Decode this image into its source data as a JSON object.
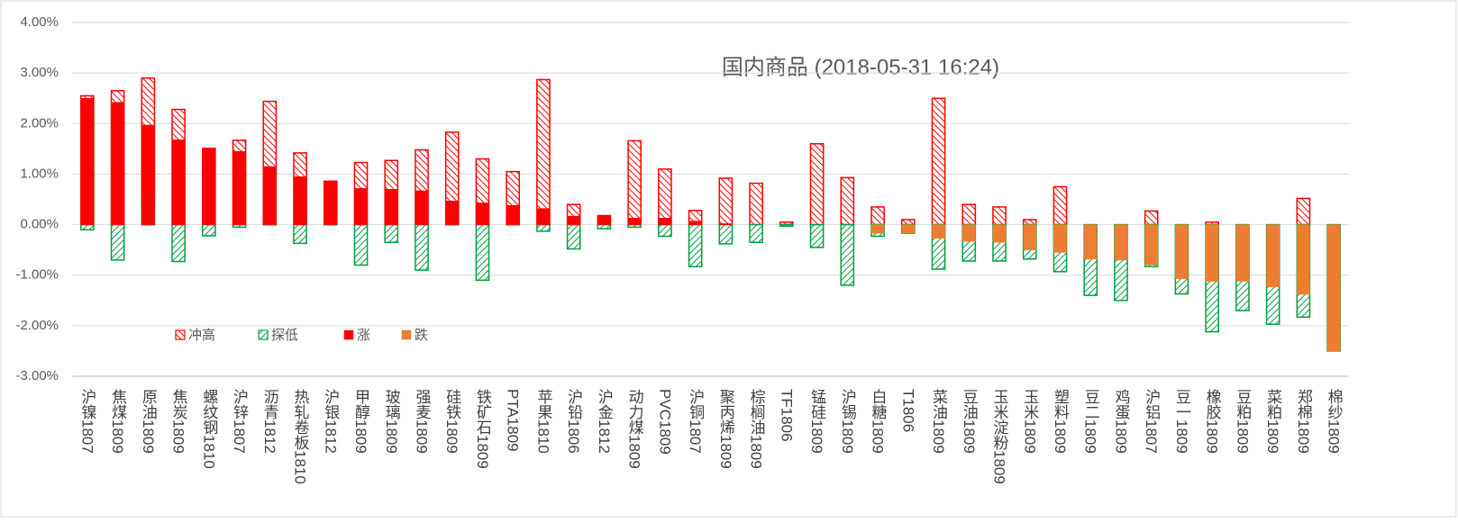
{
  "chart_data": {
    "type": "range_bar",
    "title": "国内商品 (2018-05-31 16:24)",
    "categories": [
      "沪镍1807",
      "焦煤1809",
      "原油1809",
      "焦炭1809",
      "螺纹钢1810",
      "沪锌1807",
      "沥青1812",
      "热轧卷板1810",
      "沪银1812",
      "甲醇1809",
      "玻璃1809",
      "强麦1809",
      "硅铁1809",
      "铁矿石1809",
      "PTA1809",
      "苹果1810",
      "沪铅1806",
      "沪金1812",
      "动力煤1809",
      "PVC1809",
      "沪铜1807",
      "聚丙烯1809",
      "棕榈油1809",
      "TF1806",
      "锰硅1809",
      "沪锡1809",
      "白糖1809",
      "T1806",
      "菜油1809",
      "豆油1809",
      "玉米淀粉1809",
      "玉米1809",
      "塑料1809",
      "豆二1809",
      "鸡蛋1809",
      "沪铝1807",
      "豆一1809",
      "橡胶1809",
      "豆粕1809",
      "菜粕1809",
      "郑棉1809",
      "棉纱1809"
    ],
    "series": [
      {
        "name": "冲高",
        "color": "#ff0000",
        "style": "hatched",
        "values": [
          2.55,
          2.65,
          2.9,
          2.28,
          1.5,
          1.67,
          2.44,
          1.42,
          0.86,
          1.23,
          1.27,
          1.48,
          1.83,
          1.3,
          1.05,
          2.87,
          0.4,
          0.18,
          1.66,
          1.1,
          0.28,
          0.92,
          0.82,
          0.05,
          1.6,
          0.93,
          0.35,
          0.1,
          2.5,
          0.4,
          0.35,
          0.1,
          0.75,
          null,
          null,
          0.27,
          null,
          0.05,
          null,
          null,
          0.52,
          null
        ]
      },
      {
        "name": "探低",
        "color": "#00a040",
        "style": "hatched",
        "values": [
          -0.1,
          -0.7,
          0.42,
          -0.73,
          -0.22,
          -0.05,
          0.02,
          -0.37,
          0.02,
          -0.8,
          -0.35,
          -0.9,
          0.02,
          -1.1,
          0.02,
          -0.13,
          -0.48,
          -0.08,
          -0.05,
          -0.23,
          -0.83,
          -0.38,
          -0.35,
          -0.03,
          -0.45,
          -1.2,
          -0.23,
          -0.17,
          -0.88,
          -0.72,
          -0.72,
          -0.68,
          -0.93,
          -1.4,
          -1.5,
          -0.83,
          -1.37,
          -2.12,
          -1.7,
          -1.97,
          -1.83,
          -2.5
        ]
      },
      {
        "name": "涨",
        "color": "#ff0000",
        "style": "solid",
        "values": [
          2.5,
          2.42,
          1.97,
          1.68,
          1.52,
          1.45,
          1.15,
          0.95,
          0.86,
          0.72,
          0.7,
          0.67,
          0.47,
          0.43,
          0.38,
          0.32,
          0.17,
          0.18,
          0.13,
          0.13,
          0.07,
          0.02,
          null,
          null,
          null,
          null,
          null,
          null,
          null,
          null,
          null,
          null,
          null,
          null,
          null,
          null,
          null,
          null,
          null,
          null,
          null,
          null
        ]
      },
      {
        "name": "跌",
        "color": "#ed7d31",
        "style": "solid",
        "values": [
          null,
          null,
          null,
          null,
          null,
          null,
          null,
          null,
          null,
          null,
          null,
          null,
          null,
          null,
          null,
          null,
          null,
          null,
          null,
          null,
          null,
          null,
          null,
          null,
          null,
          null,
          -0.17,
          -0.17,
          -0.27,
          -0.33,
          -0.35,
          -0.5,
          -0.55,
          -0.68,
          -0.7,
          -0.8,
          -1.07,
          -1.12,
          -1.12,
          -1.23,
          -1.38,
          -2.5
        ]
      }
    ],
    "ylim": [
      -3,
      4
    ],
    "yticks": [
      {
        "value": -3,
        "label": "-3.00%"
      },
      {
        "value": -2,
        "label": "-2.00%"
      },
      {
        "value": -1,
        "label": "-1.00%"
      },
      {
        "value": 0,
        "label": "0.00%"
      },
      {
        "value": 1,
        "label": "1.00%"
      },
      {
        "value": 2,
        "label": "2.00%"
      },
      {
        "value": 3,
        "label": "3.00%"
      },
      {
        "value": 4,
        "label": "4.00%"
      }
    ],
    "grid": true
  }
}
